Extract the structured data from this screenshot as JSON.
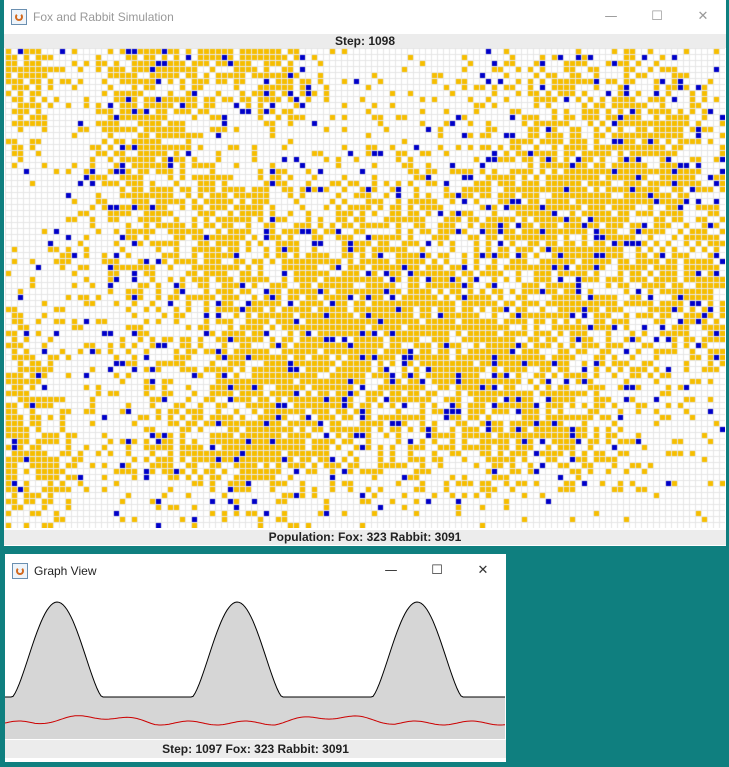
{
  "sim_window": {
    "title": "Fox and Rabbit Simulation",
    "step_label": "Step: 1098",
    "population_label": "Population: Fox: 323 Rabbit: 3091",
    "controls": {
      "minimize": "—",
      "maximize": "☐",
      "close": "✕"
    }
  },
  "graph_window": {
    "title": "Graph View",
    "status_label": "Step:  1097  Fox: 323 Rabbit: 3091",
    "controls": {
      "minimize": "—",
      "maximize": "☐",
      "close": "✕"
    }
  },
  "colors": {
    "desktop": "#0f7f7f",
    "rabbit": "#f6be00",
    "fox": "#0000c8",
    "grid_line": "#e6e6e6",
    "graph_fill": "#d6d6d6",
    "rabbit_curve": "#000000",
    "fox_curve": "#cc0000"
  },
  "legend": {
    "rabbit_color_name": "orange",
    "fox_color_name": "blue"
  }
}
